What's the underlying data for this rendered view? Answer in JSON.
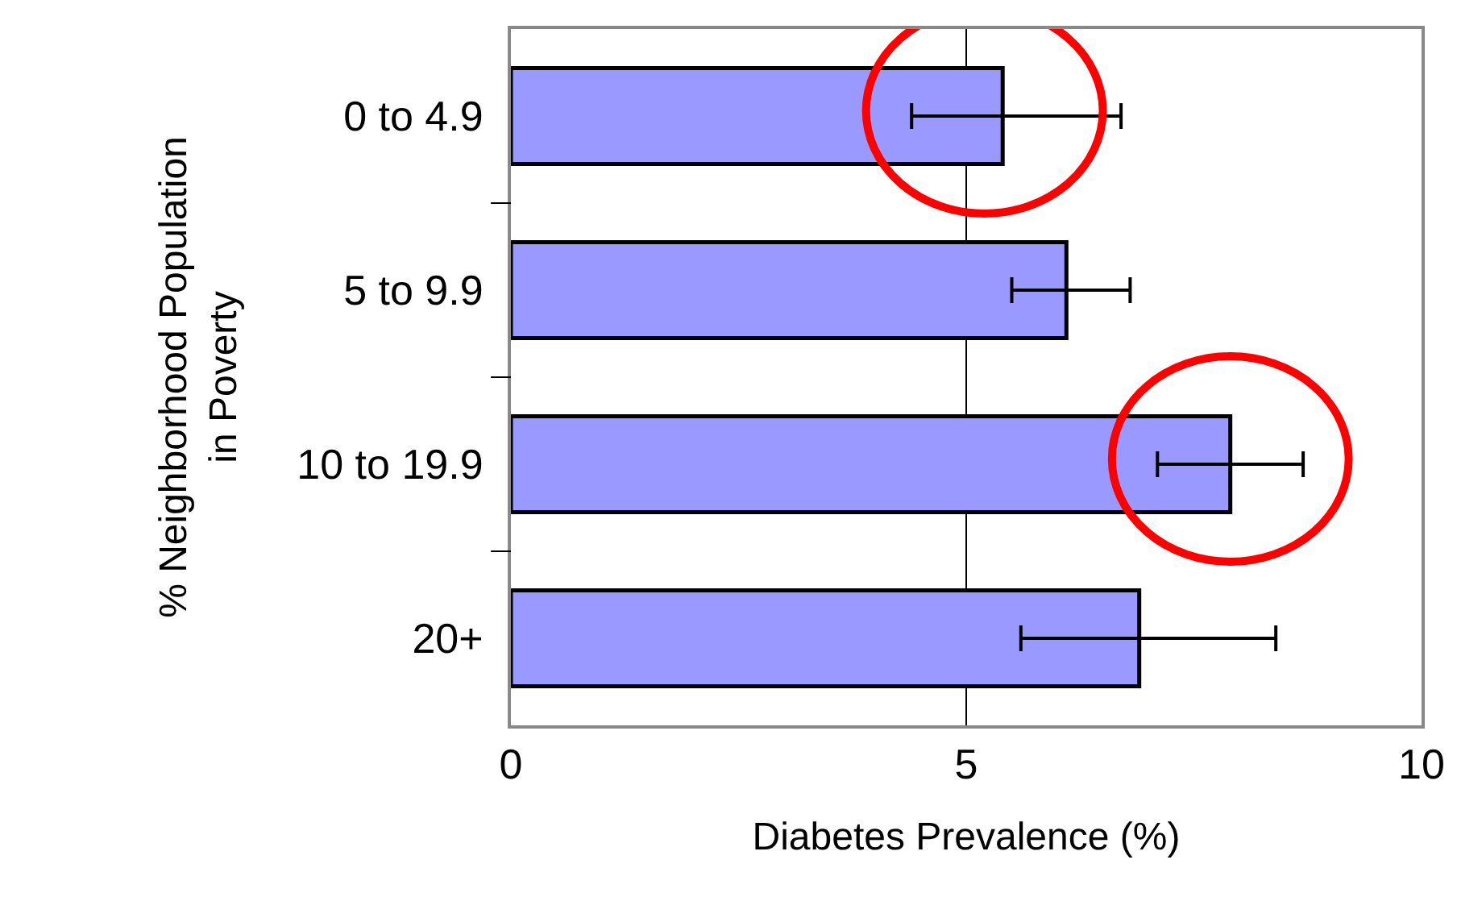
{
  "chart_data": {
    "type": "bar",
    "orientation": "horizontal",
    "xlabel": "Diabetes Prevalence (%)",
    "ylabel": "% Neighborhood Population in Poverty",
    "categories": [
      "0 to 4.9",
      "5 to 9.9",
      "10 to 19.9",
      "20+"
    ],
    "values": [
      5.4,
      6.1,
      7.9,
      6.9
    ],
    "errors": [
      [
        4.4,
        6.7
      ],
      [
        5.5,
        6.8
      ],
      [
        7.1,
        8.7
      ],
      [
        5.6,
        8.4
      ]
    ],
    "color": "#9999ff",
    "xlim": [
      0,
      10
    ],
    "xticks": [
      0,
      5,
      10
    ],
    "grid": "x"
  }
}
